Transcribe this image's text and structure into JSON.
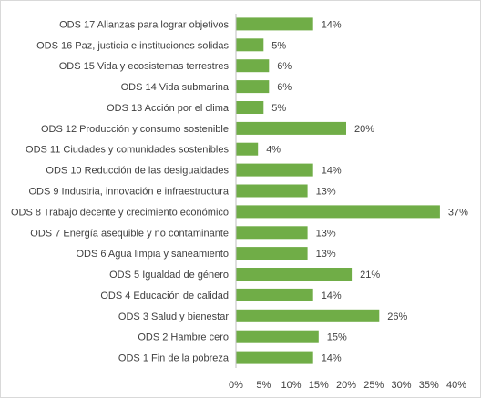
{
  "chart_data": {
    "type": "bar",
    "orientation": "horizontal",
    "categories": [
      "ODS 17 Alianzas para lograr objetivos",
      "ODS 16 Paz, justicia e instituciones solidas",
      "ODS 15 Vida y ecosistemas terrestres",
      "ODS 14 Vida submarina",
      "ODS 13 Acción por el clima",
      "ODS 12 Producción y consumo sostenible",
      "ODS 11 Ciudades y comunidades sostenibles",
      "ODS 10 Reducción de las desigualdades",
      "ODS 9 Industria, innovación e infraestructura",
      "ODS 8 Trabajo decente y crecimiento económico",
      "ODS 7 Energía asequible y no contaminante",
      "ODS 6 Agua limpia y saneamiento",
      "ODS 5  Igualdad de género",
      "ODS 4 Educación de calidad",
      "ODS 3 Salud y bienestar",
      "ODS 2 Hambre cero",
      "ODS 1 Fin de la pobreza"
    ],
    "values": [
      14,
      5,
      6,
      6,
      5,
      20,
      4,
      14,
      13,
      37,
      13,
      13,
      21,
      14,
      26,
      15,
      14
    ],
    "data_labels": [
      "14%",
      "5%",
      "6%",
      "6%",
      "5%",
      "20%",
      "4%",
      "14%",
      "13%",
      "37%",
      "13%",
      "13%",
      "21%",
      "14%",
      "26%",
      "15%",
      "14%"
    ],
    "xlim": [
      0,
      40
    ],
    "xticks": [
      0,
      5,
      10,
      15,
      20,
      25,
      30,
      35,
      40
    ],
    "xtick_labels": [
      "0%",
      "5%",
      "10%",
      "15%",
      "20%",
      "25%",
      "30%",
      "35%",
      "40%"
    ],
    "title": "",
    "xlabel": "",
    "ylabel": "",
    "grid": false,
    "legend": "none",
    "bar_color": "#70ad47",
    "axis_color": "#bfbfbf"
  }
}
